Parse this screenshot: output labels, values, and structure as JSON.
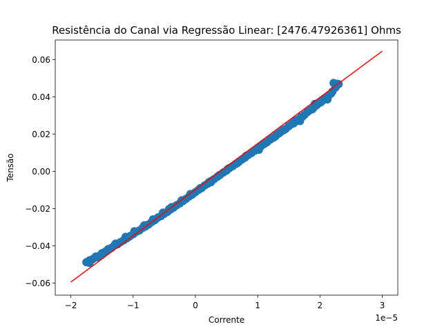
{
  "chart_data": {
    "type": "scatter",
    "title": "Resistência do Canal via Regressão Linear: [2476.47926361] Ohms",
    "xlabel": "Corrente",
    "ylabel": "Tensão",
    "x_offset_text": "1e−5",
    "xlim": [
      -2.25e-05,
      3.25e-05
    ],
    "ylim": [
      -0.0665,
      0.0705
    ],
    "x_ticks": [
      -2e-05,
      -1e-05,
      0,
      1e-05,
      2e-05,
      3e-05
    ],
    "x_tick_labels": [
      "−2",
      "−1",
      "0",
      "1",
      "2",
      "3"
    ],
    "y_ticks": [
      -0.06,
      -0.04,
      -0.02,
      0.0,
      0.02,
      0.04,
      0.06
    ],
    "y_tick_labels": [
      "−0.06",
      "−0.04",
      "−0.02",
      "0.00",
      "0.02",
      "0.04",
      "0.06"
    ],
    "grid": false,
    "series": [
      {
        "kind": "scatter",
        "color": "#1f77b4",
        "points": [
          [
            -1.75e-05,
            -0.0488
          ],
          [
            -1.7e-05,
            -0.0478
          ],
          [
            -1.65e-05,
            -0.0472
          ],
          [
            -1.6e-05,
            -0.0458
          ],
          [
            -1.55e-05,
            -0.0455
          ],
          [
            -1.5e-05,
            -0.044
          ],
          [
            -1.45e-05,
            -0.0432
          ],
          [
            -1.4e-05,
            -0.0418
          ],
          [
            -1.35e-05,
            -0.0412
          ],
          [
            -1.3e-05,
            -0.0398
          ],
          [
            -1.25e-05,
            -0.0392
          ],
          [
            -1.2e-05,
            -0.038
          ],
          [
            -1.15e-05,
            -0.037
          ],
          [
            -1.1e-05,
            -0.036
          ],
          [
            -1.05e-05,
            -0.0348
          ],
          [
            -1e-05,
            -0.0338
          ],
          [
            -9.5e-06,
            -0.0325
          ],
          [
            -9e-06,
            -0.0318
          ],
          [
            -8.5e-06,
            -0.0305
          ],
          [
            -8e-06,
            -0.0296
          ],
          [
            -7.5e-06,
            -0.0285
          ],
          [
            -7e-06,
            -0.0272
          ],
          [
            -6.5e-06,
            -0.0262
          ],
          [
            -6e-06,
            -0.0248
          ],
          [
            -5.5e-06,
            -0.024
          ],
          [
            -5e-06,
            -0.0228
          ],
          [
            -4.5e-06,
            -0.0218
          ],
          [
            -4e-06,
            -0.0205
          ],
          [
            -3.5e-06,
            -0.0195
          ],
          [
            -3e-06,
            -0.0182
          ],
          [
            -2.5e-06,
            -0.0172
          ],
          [
            -2e-06,
            -0.016
          ],
          [
            -1.5e-06,
            -0.0148
          ],
          [
            -1e-06,
            -0.0135
          ],
          [
            -5e-07,
            -0.0125
          ],
          [
            0.0,
            -0.0112
          ],
          [
            5e-07,
            -0.01
          ],
          [
            1e-06,
            -0.009
          ],
          [
            1.5e-06,
            -0.0076
          ],
          [
            2e-06,
            -0.0066
          ],
          [
            2.5e-06,
            -0.0052
          ],
          [
            3e-06,
            -0.0042
          ],
          [
            3.5e-06,
            -0.003
          ],
          [
            4e-06,
            -0.0018
          ],
          [
            4.5e-06,
            -0.0006
          ],
          [
            5e-06,
            0.0004
          ],
          [
            5.5e-06,
            0.0018
          ],
          [
            6e-06,
            0.0028
          ],
          [
            6.5e-06,
            0.004
          ],
          [
            7e-06,
            0.0052
          ],
          [
            7.5e-06,
            0.0064
          ],
          [
            8e-06,
            0.0074
          ],
          [
            8.5e-06,
            0.0088
          ],
          [
            9e-06,
            0.0098
          ],
          [
            9.5e-06,
            0.011
          ],
          [
            1e-05,
            0.0122
          ],
          [
            1.05e-05,
            0.0134
          ],
          [
            1.1e-05,
            0.0146
          ],
          [
            1.15e-05,
            0.0156
          ],
          [
            1.2e-05,
            0.017
          ],
          [
            1.25e-05,
            0.018
          ],
          [
            1.3e-05,
            0.0194
          ],
          [
            1.35e-05,
            0.0205
          ],
          [
            1.4e-05,
            0.0218
          ],
          [
            1.45e-05,
            0.0228
          ],
          [
            1.5e-05,
            0.0242
          ],
          [
            1.55e-05,
            0.0254
          ],
          [
            1.6e-05,
            0.0266
          ],
          [
            1.65e-05,
            0.0278
          ],
          [
            1.7e-05,
            0.0292
          ],
          [
            1.75e-05,
            0.0303
          ],
          [
            1.8e-05,
            0.0318
          ],
          [
            1.85e-05,
            0.033
          ],
          [
            1.9e-05,
            0.0342
          ],
          [
            1.95e-05,
            0.0356
          ],
          [
            2e-05,
            0.0368
          ],
          [
            2.05e-05,
            0.0382
          ],
          [
            2.1e-05,
            0.0396
          ],
          [
            2.15e-05,
            0.041
          ],
          [
            2.2e-05,
            0.0428
          ],
          [
            2.25e-05,
            0.045
          ],
          [
            2.3e-05,
            0.0468
          ],
          [
            2.22e-05,
            0.0474
          ],
          [
            2.28e-05,
            0.047
          ],
          [
            -1.7e-05,
            -0.0492
          ],
          [
            -1.58e-05,
            -0.0462
          ],
          [
            -1.42e-05,
            -0.0426
          ],
          [
            -1.28e-05,
            -0.0388
          ],
          [
            -1.12e-05,
            -0.0352
          ],
          [
            -9.8e-06,
            -0.0322
          ],
          [
            -8.2e-06,
            -0.029
          ],
          [
            -6.8e-06,
            -0.0258
          ],
          [
            -5.2e-06,
            -0.0222
          ],
          [
            -3.8e-06,
            -0.0192
          ],
          [
            -2.2e-06,
            -0.0156
          ],
          [
            -8e-07,
            -0.0122
          ],
          [
            8e-07,
            -0.009
          ],
          [
            2.2e-06,
            -0.0058
          ],
          [
            3.8e-06,
            -0.0022
          ],
          [
            5.2e-06,
            0.0012
          ],
          [
            6.8e-06,
            0.0046
          ],
          [
            8.2e-06,
            0.0084
          ],
          [
            9.8e-06,
            0.0118
          ],
          [
            1.12e-05,
            0.0152
          ],
          [
            1.28e-05,
            0.0186
          ],
          [
            1.42e-05,
            0.0222
          ],
          [
            1.58e-05,
            0.0258
          ],
          [
            1.72e-05,
            0.0294
          ],
          [
            1.88e-05,
            0.0334
          ],
          [
            2.02e-05,
            0.0372
          ],
          [
            2.18e-05,
            0.0418
          ],
          [
            2.12e-05,
            0.0386
          ],
          [
            1.68e-05,
            0.027
          ],
          [
            1.02e-05,
            0.0116
          ],
          [
            2.5e-06,
            -0.0058
          ],
          [
            -4.2e-06,
            -0.0202
          ],
          [
            -1.08e-05,
            -0.0354
          ],
          [
            -1.52e-05,
            -0.045
          ],
          [
            1.92e-05,
            0.0362
          ],
          [
            1.6e-05,
            0.0272
          ]
        ]
      },
      {
        "kind": "line",
        "color": "#ff0000",
        "points": [
          [
            -2e-05,
            -0.0595
          ],
          [
            3e-05,
            0.0645
          ]
        ]
      }
    ]
  }
}
